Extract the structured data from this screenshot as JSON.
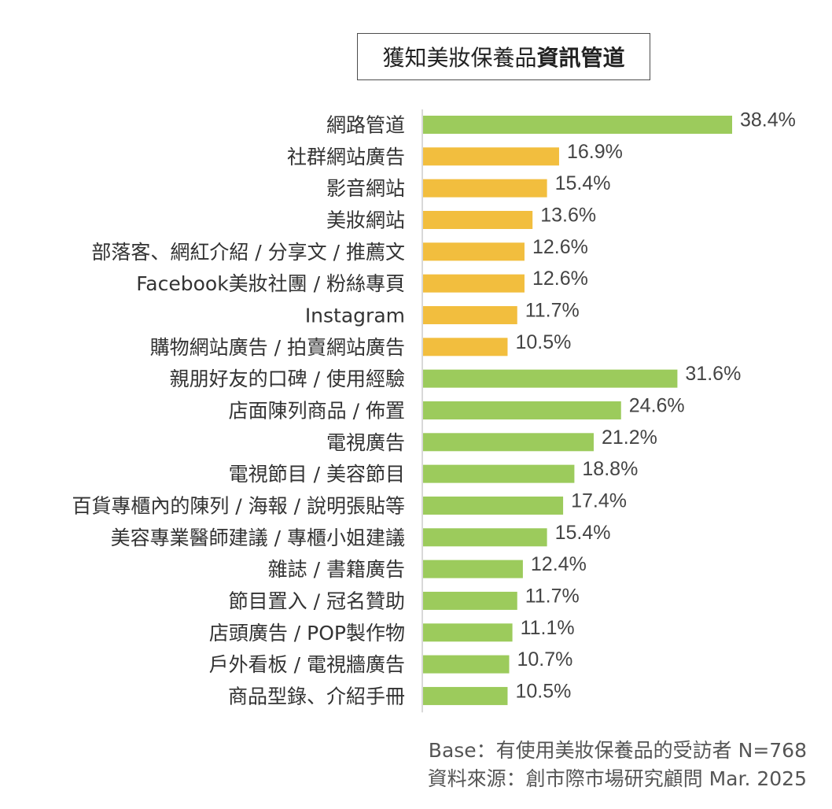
{
  "chart_data": {
    "type": "bar",
    "orientation": "horizontal",
    "title": "獲知美妝保養品",
    "title_emphasis": "資訊管道",
    "categories": [
      "網路管道",
      "社群網站廣告",
      "影音網站",
      "美妝網站",
      "部落客、網紅介紹 / 分享文 / 推薦文",
      "Facebook美妝社團 / 粉絲專頁",
      "Instagram",
      "購物網站廣告 / 拍賣網站廣告",
      "親朋好友的口碑 / 使用經驗",
      "店面陳列商品 / 佈置",
      "電視廣告",
      "電視節目 / 美容節目",
      "百貨專櫃內的陳列 / 海報 / 說明張貼等",
      "美容專業醫師建議 / 專櫃小姐建議",
      "雜誌 / 書籍廣告",
      "節目置入 / 冠名贊助",
      "店頭廣告 / POP製作物",
      "戶外看板 / 電視牆廣告",
      "商品型錄、介紹手冊"
    ],
    "values": [
      38.4,
      16.9,
      15.4,
      13.6,
      12.6,
      12.6,
      11.7,
      10.5,
      31.6,
      24.6,
      21.2,
      18.8,
      17.4,
      15.4,
      12.4,
      11.7,
      11.1,
      10.7,
      10.5
    ],
    "value_labels": [
      "38.4%",
      "16.9%",
      "15.4%",
      "13.6%",
      "12.6%",
      "12.6%",
      "11.7%",
      "10.5%",
      "31.6%",
      "24.6%",
      "21.2%",
      "18.8%",
      "17.4%",
      "15.4%",
      "12.4%",
      "11.7%",
      "11.1%",
      "10.7%",
      "10.5%"
    ],
    "bar_colors": [
      "#9ccb5c",
      "#f2be3e",
      "#f2be3e",
      "#f2be3e",
      "#f2be3e",
      "#f2be3e",
      "#f2be3e",
      "#f2be3e",
      "#9ccb5c",
      "#9ccb5c",
      "#9ccb5c",
      "#9ccb5c",
      "#9ccb5c",
      "#9ccb5c",
      "#9ccb5c",
      "#9ccb5c",
      "#9ccb5c",
      "#9ccb5c",
      "#9ccb5c"
    ],
    "colors": {
      "green": "#9ccb5c",
      "yellow": "#f2be3e",
      "axis": "#cccccc"
    },
    "xlim": [
      0,
      38.4
    ],
    "grid": false,
    "legend": "none"
  },
  "footer": {
    "base": "Base：有使用美妝保養品的受訪者 N=768",
    "source": "資料來源：創市際市場研究顧問 Mar. 2025"
  }
}
